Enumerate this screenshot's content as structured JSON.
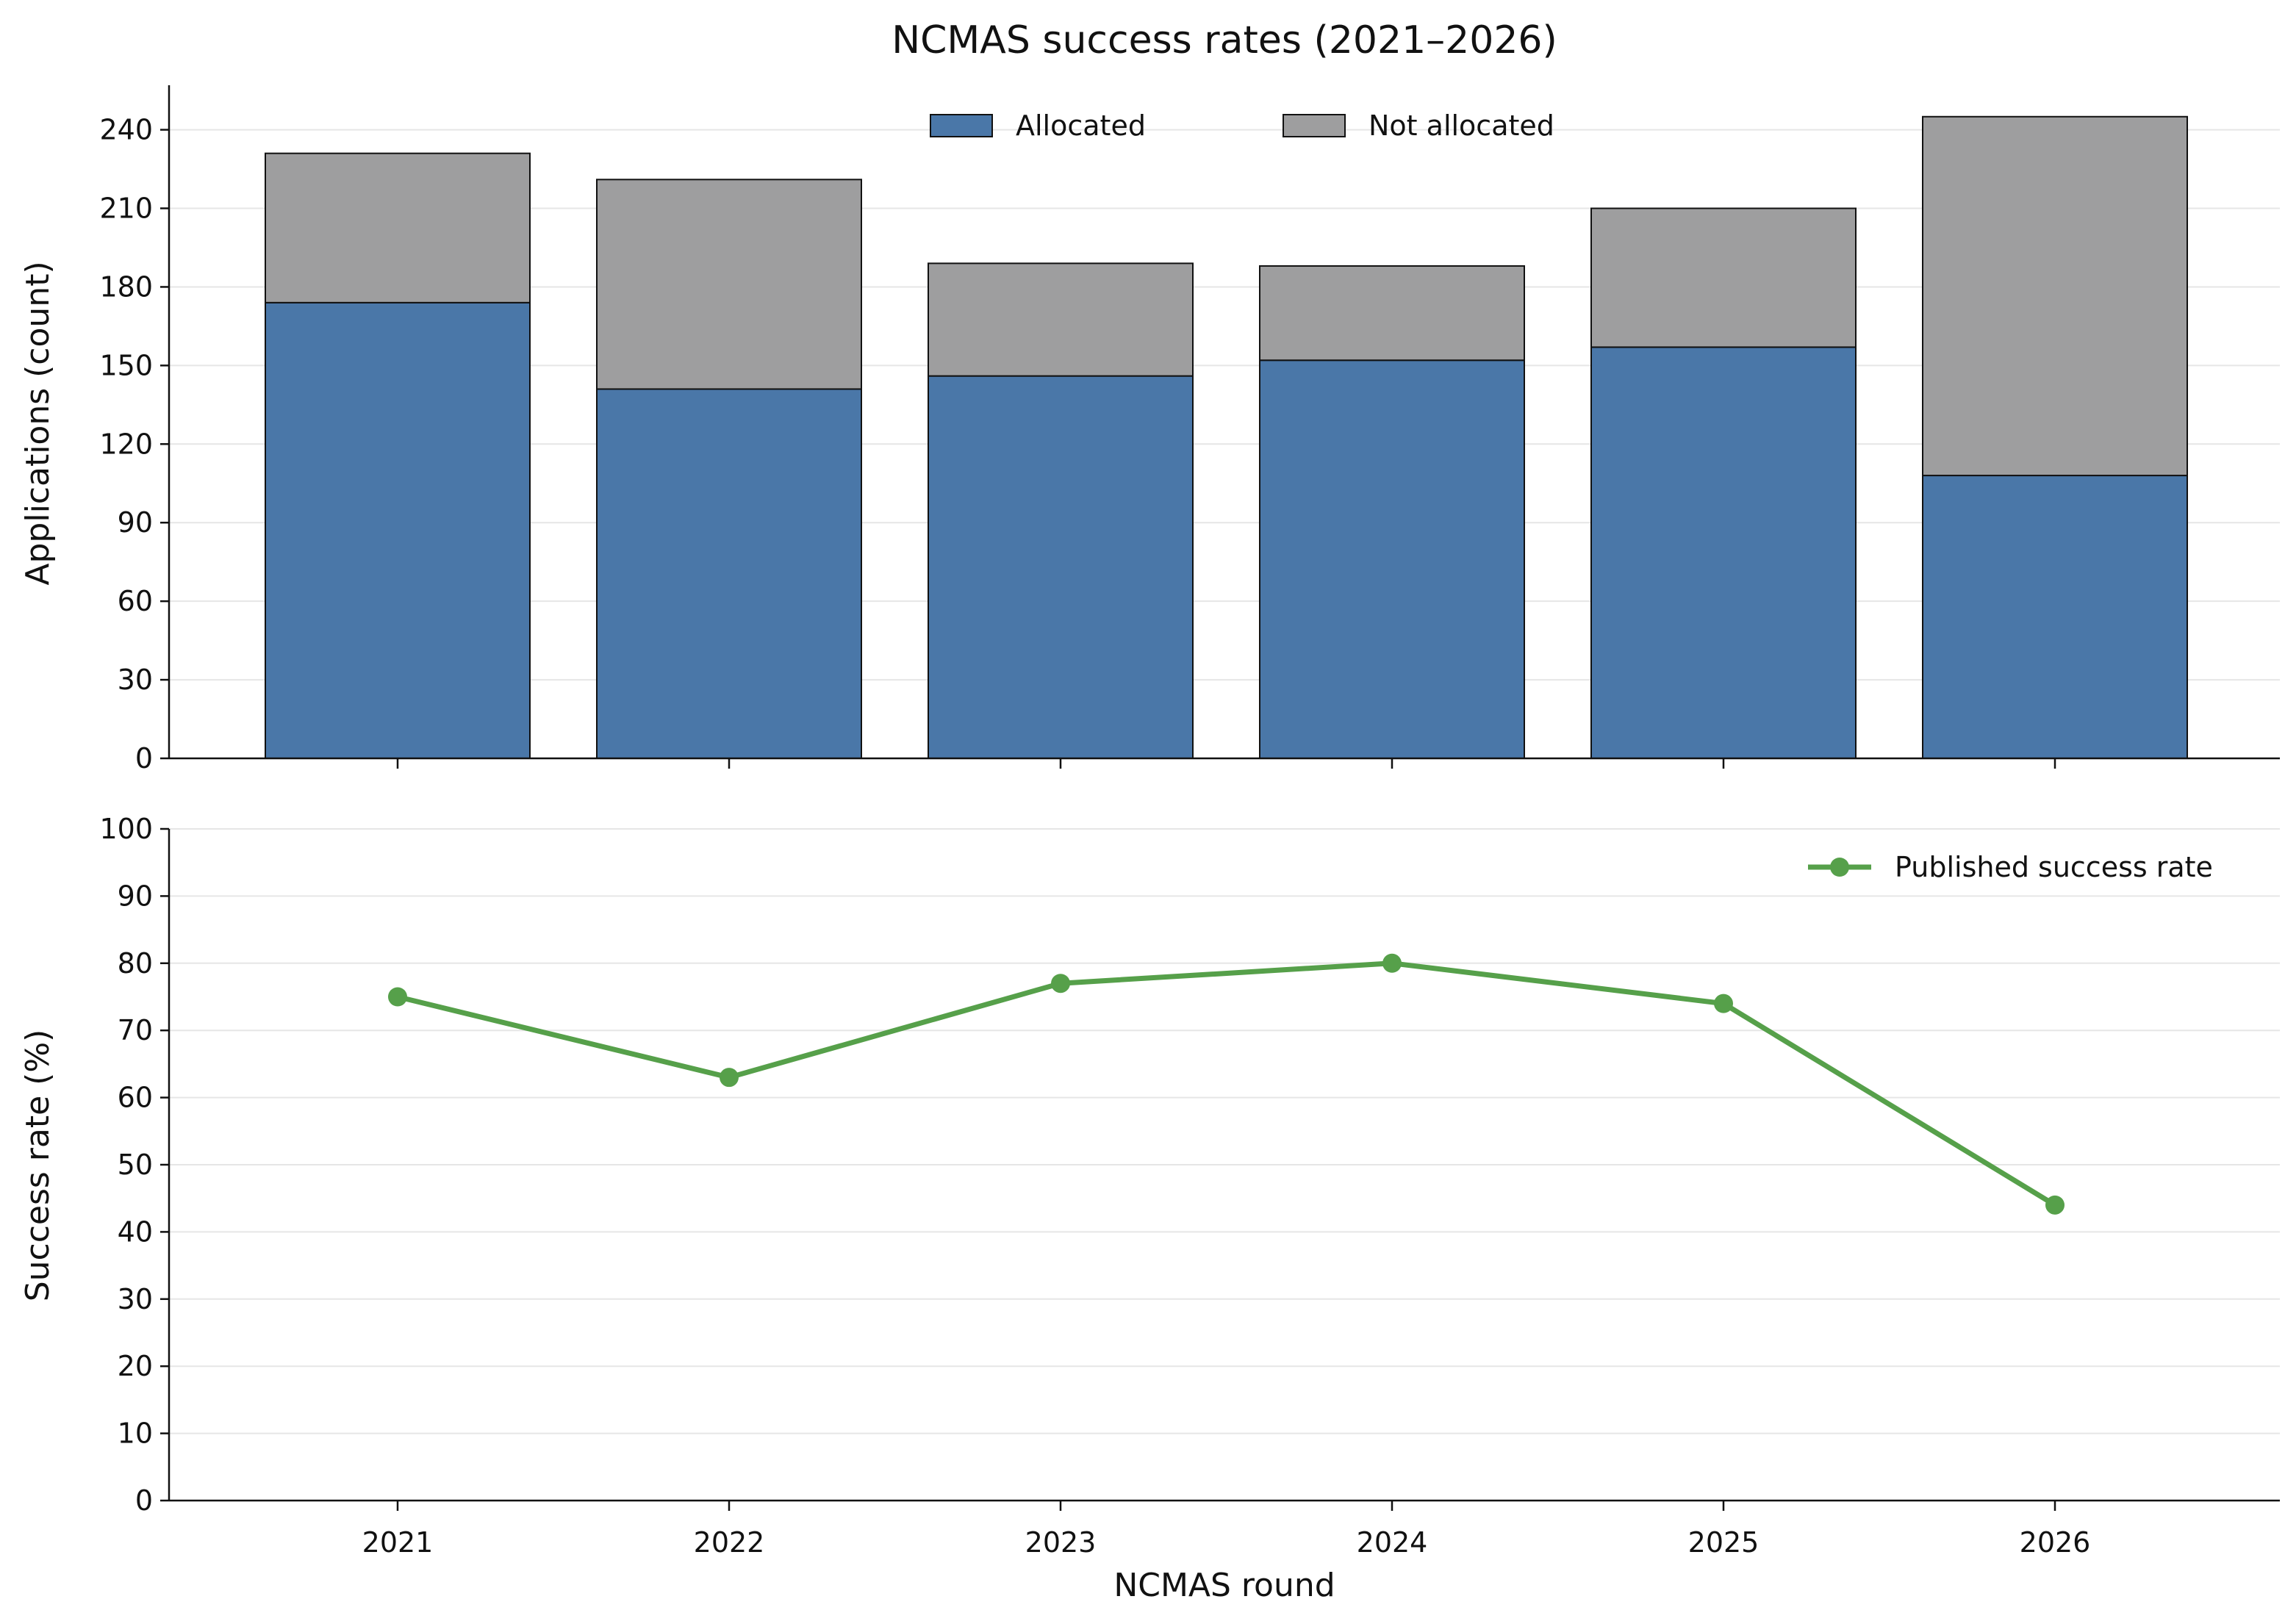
{
  "chart_data": [
    {
      "type": "bar",
      "stacked": true,
      "title": "NCMAS success rates (2021–2026)",
      "ylabel": "Applications (count)",
      "xlabel": "",
      "categories": [
        "2021",
        "2022",
        "2023",
        "2024",
        "2025",
        "2026"
      ],
      "series": [
        {
          "name": "Allocated",
          "color": "#4a77a8",
          "values": [
            174,
            141,
            146,
            152,
            157,
            108
          ]
        },
        {
          "name": "Not allocated",
          "color": "#9e9e9f",
          "values": [
            57,
            80,
            43,
            36,
            53,
            137
          ]
        }
      ],
      "ylim": [
        0,
        257
      ],
      "yticks": [
        0,
        30,
        60,
        90,
        120,
        150,
        180,
        210,
        240
      ],
      "grid": true,
      "legend_position": "top-center"
    },
    {
      "type": "line",
      "title": "",
      "ylabel": "Success rate (%)",
      "xlabel": "NCMAS round",
      "categories": [
        "2021",
        "2022",
        "2023",
        "2024",
        "2025",
        "2026"
      ],
      "series": [
        {
          "name": "Published success rate",
          "color": "#56a04a",
          "values": [
            75,
            63,
            77,
            80,
            74,
            44
          ]
        }
      ],
      "ylim": [
        0,
        100
      ],
      "yticks": [
        0,
        10,
        20,
        30,
        40,
        50,
        60,
        70,
        80,
        90,
        100
      ],
      "grid": true,
      "legend_position": "top-right"
    }
  ]
}
